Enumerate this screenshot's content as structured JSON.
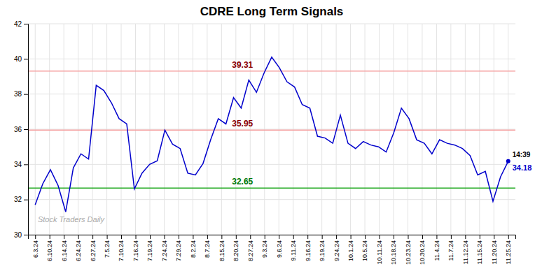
{
  "chart_data": {
    "type": "line",
    "title": "CDRE Long Term Signals",
    "watermark": "Stock Traders Daily",
    "x": [
      0,
      0.532258,
      1.064516,
      1.596774,
      2.129032,
      2.66129,
      3.193548,
      3.725806,
      4.258065,
      4.790323,
      5.322581,
      5.854839,
      6.387097,
      6.919355,
      7.451613,
      7.983871,
      8.516129,
      9.048387,
      9.580645,
      10.112903,
      10.645161,
      11.177419,
      11.709677,
      12.241935,
      12.774194,
      13.306452,
      13.83871,
      14.370968,
      14.903226,
      15.435484,
      15.967742,
      16.5,
      17.032258,
      17.564516,
      18.096774,
      18.629032,
      19.16129,
      19.693548,
      20.225806,
      20.758065,
      21.290323,
      21.822581,
      22.354839,
      22.887097,
      23.419355,
      23.951613,
      24.483871,
      25.016129,
      25.548387,
      26.080645,
      26.612903,
      27.145161,
      27.677419,
      28.209677,
      28.741935,
      29.274194,
      29.806452,
      30.33871,
      30.870968,
      31.403226,
      31.935484,
      32.467742,
      33
    ],
    "series": [
      {
        "color": "#0000cc",
        "values": [
          31.7,
          32.9,
          33.7,
          32.8,
          31.3,
          33.8,
          34.6,
          34.3,
          38.5,
          38.2,
          37.5,
          36.6,
          36.3,
          32.6,
          33.5,
          34.0,
          34.2,
          35.95,
          35.15,
          34.9,
          33.5,
          33.4,
          34.05,
          35.4,
          36.6,
          36.3,
          37.8,
          37.2,
          38.8,
          38.1,
          39.2,
          40.1,
          39.5,
          38.7,
          38.4,
          37.4,
          37.2,
          35.6,
          35.5,
          35.2,
          36.8,
          35.2,
          34.9,
          35.3,
          35.1,
          35.0,
          34.7,
          35.8,
          37.2,
          36.6,
          35.4,
          35.2,
          34.6,
          35.4,
          35.2,
          35.1,
          34.9,
          34.5,
          33.4,
          33.6,
          31.9,
          33.3,
          34.18
        ]
      }
    ],
    "xlim": [
      -0.5,
      33.5
    ],
    "xticks": [
      {
        "value": 0,
        "label": "6.3.24"
      },
      {
        "value": 1,
        "label": "6.10.24"
      },
      {
        "value": 2,
        "label": "6.14.24"
      },
      {
        "value": 3,
        "label": "6.24.24"
      },
      {
        "value": 4,
        "label": "6.27.24"
      },
      {
        "value": 5,
        "label": "7.5.24"
      },
      {
        "value": 6,
        "label": "7.10.24"
      },
      {
        "value": 7,
        "label": "7.16.24"
      },
      {
        "value": 8,
        "label": "7.19.24"
      },
      {
        "value": 9,
        "label": "7.24.24"
      },
      {
        "value": 10,
        "label": "7.29.24"
      },
      {
        "value": 11,
        "label": "8.2.24"
      },
      {
        "value": 12,
        "label": "8.7.24"
      },
      {
        "value": 13,
        "label": "8.15.24"
      },
      {
        "value": 14,
        "label": "8.20.24"
      },
      {
        "value": 15,
        "label": "8.27.24"
      },
      {
        "value": 16,
        "label": "9.3.24"
      },
      {
        "value": 17,
        "label": "9.6.24"
      },
      {
        "value": 18,
        "label": "9.11.24"
      },
      {
        "value": 19,
        "label": "9.16.24"
      },
      {
        "value": 20,
        "label": "9.19.24"
      },
      {
        "value": 21,
        "label": "9.24.24"
      },
      {
        "value": 22,
        "label": "10.1.24"
      },
      {
        "value": 23,
        "label": "10.5.24"
      },
      {
        "value": 24,
        "label": "10.11.24"
      },
      {
        "value": 25,
        "label": "10.18.24"
      },
      {
        "value": 26,
        "label": "10.23.24"
      },
      {
        "value": 27,
        "label": "10.30.24"
      },
      {
        "value": 28,
        "label": "11.4.24"
      },
      {
        "value": 29,
        "label": "11.7.24"
      },
      {
        "value": 30,
        "label": "11.12.24"
      },
      {
        "value": 31,
        "label": "11.15.24"
      },
      {
        "value": 32,
        "label": "11.20.24"
      },
      {
        "value": 33,
        "label": "11.25.24"
      }
    ],
    "ylim": [
      30,
      42
    ],
    "yticks": [
      30,
      32,
      34,
      36,
      38,
      40,
      42
    ],
    "grid": true,
    "reference_lines": [
      {
        "value": 39.31,
        "color": "#f5a0a0",
        "label": "39.31",
        "label_color": "#8b0000"
      },
      {
        "value": 35.95,
        "color": "#f5a0a0",
        "label": "35.95",
        "label_color": "#8b0000"
      },
      {
        "value": 32.65,
        "color": "#22aa22",
        "label": "32.65",
        "label_color": "#007700"
      }
    ],
    "last_point": {
      "value": 34.18,
      "label": "34.18",
      "time": "14:39"
    }
  }
}
